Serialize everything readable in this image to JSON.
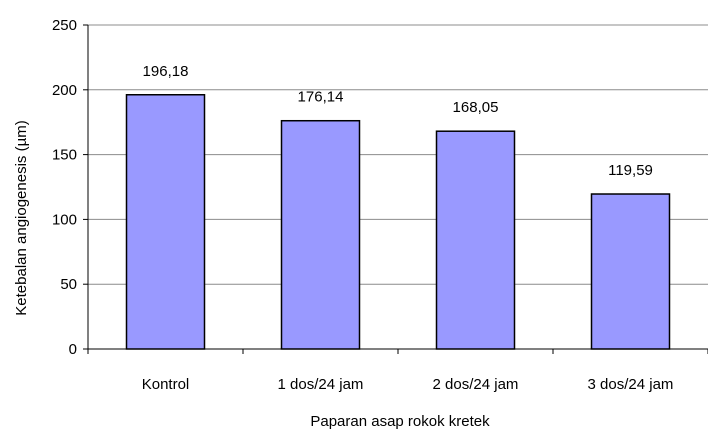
{
  "chart_data": {
    "type": "bar",
    "title": "",
    "xlabel": "Paparan asap rokok kretek",
    "ylabel": "Ketebalan angiogenesis (µm)",
    "categories": [
      "Kontrol",
      "1 dos/24 jam",
      "2 dos/24 jam",
      "3 dos/24 jam"
    ],
    "values": [
      196.18,
      176.14,
      168.05,
      119.59
    ],
    "data_labels": [
      "196,18",
      "176,14",
      "168,05",
      "119,59"
    ],
    "ylim": [
      0,
      250
    ],
    "yticks": [
      0,
      50,
      100,
      150,
      200,
      250
    ],
    "grid": true,
    "bar_color": "#9999ff",
    "legend": "none"
  }
}
